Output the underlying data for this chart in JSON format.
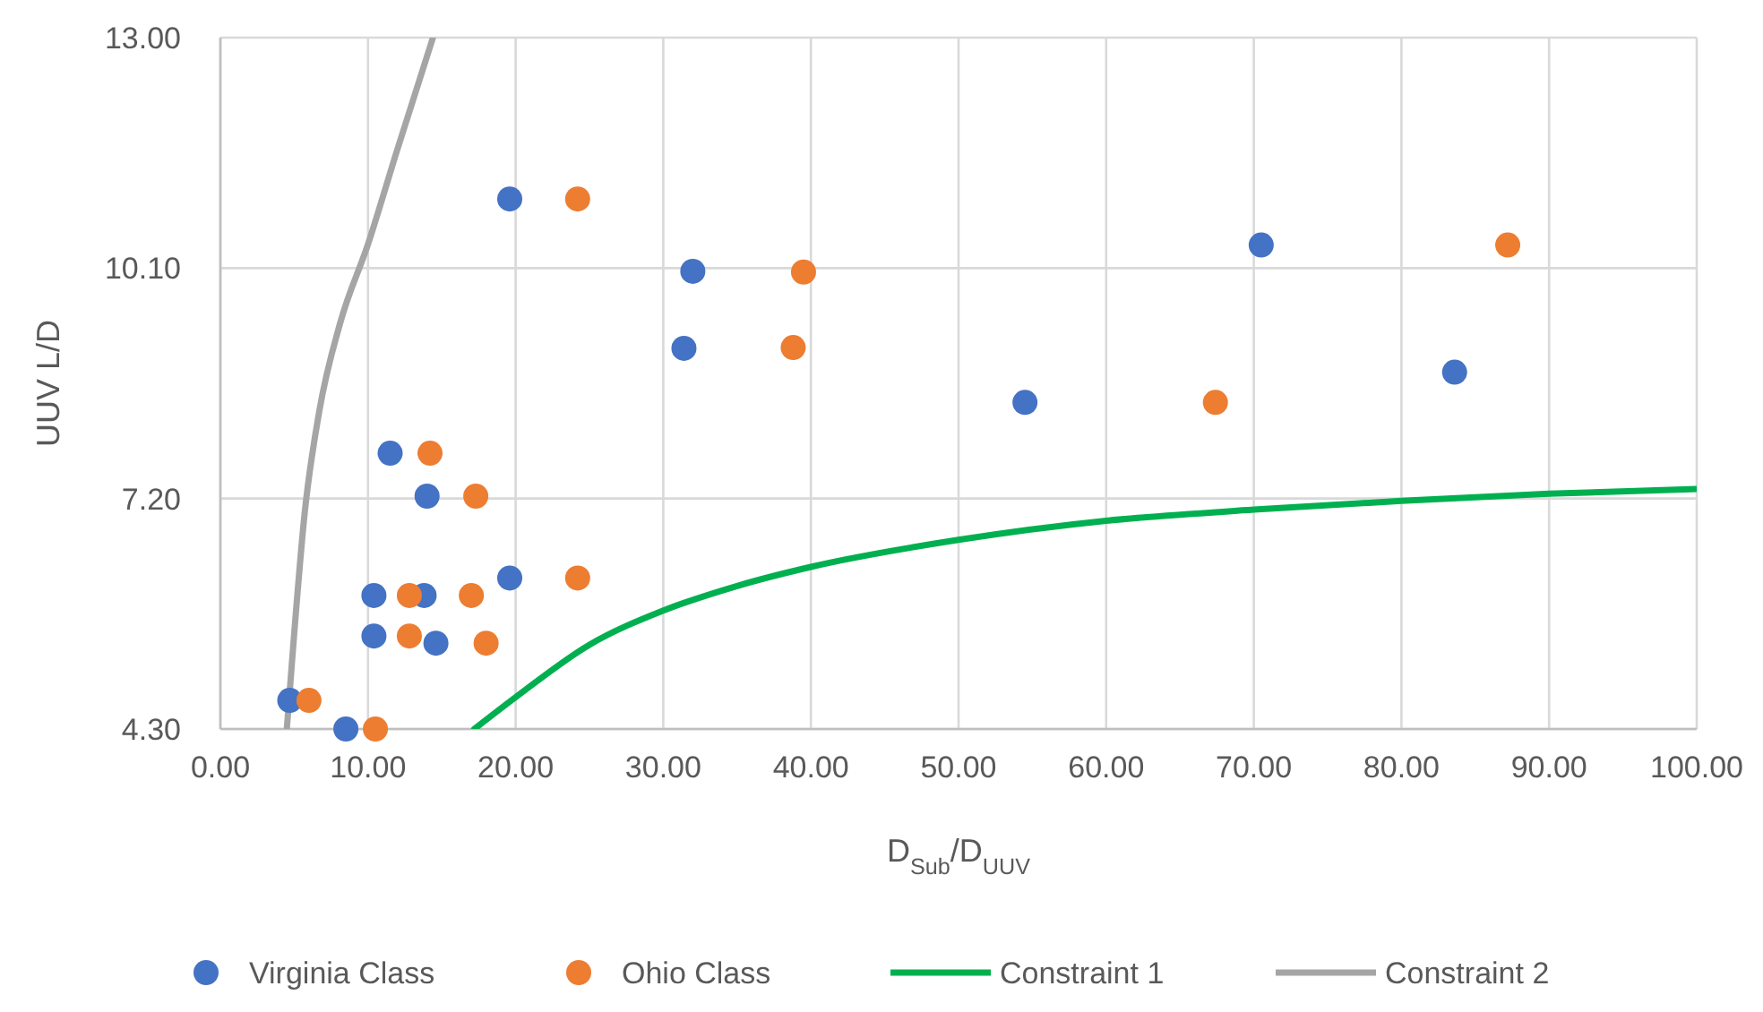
{
  "chart_data": {
    "type": "scatter",
    "xlabel": "D$_{Sub}$/D$_{UUV}$",
    "ylabel": "UUV L/D",
    "xlim": [
      0,
      100
    ],
    "xticks": [
      {
        "value": 0,
        "label": "0.00"
      },
      {
        "value": 10,
        "label": "10.00"
      },
      {
        "value": 20,
        "label": "20.00"
      },
      {
        "value": 30,
        "label": "30.00"
      },
      {
        "value": 40,
        "label": "40.00"
      },
      {
        "value": 50,
        "label": "50.00"
      },
      {
        "value": 60,
        "label": "60.00"
      },
      {
        "value": 70,
        "label": "70.00"
      },
      {
        "value": 80,
        "label": "80.00"
      },
      {
        "value": 90,
        "label": "90.00"
      },
      {
        "value": 100,
        "label": "100.00"
      }
    ],
    "ylim": [
      4.3,
      13
    ],
    "yticks": [
      {
        "value": 4.3,
        "label": "4.30"
      },
      {
        "value": 7.2,
        "label": "7.20"
      },
      {
        "value": 10.1,
        "label": "10.10"
      },
      {
        "value": 13,
        "label": "13.00"
      }
    ],
    "grid": true,
    "legend": "bottom",
    "series": [
      {
        "name": "Virginia Class",
        "marker": "circle",
        "color": "#4472c4",
        "x": [
          4.7,
          8.5,
          11.5,
          14.0,
          10.4,
          13.8,
          10.4,
          14.6,
          19.6,
          19.6,
          32.0,
          31.4,
          54.5,
          70.5,
          83.6
        ],
        "values": [
          4.66,
          4.3,
          7.77,
          7.23,
          5.98,
          5.98,
          5.47,
          5.38,
          10.97,
          6.2,
          10.06,
          9.09,
          8.41,
          10.39,
          8.79
        ]
      },
      {
        "name": "Ohio Class",
        "marker": "circle",
        "color": "#ed7d31",
        "x": [
          6.0,
          10.5,
          14.2,
          17.3,
          12.8,
          17.0,
          12.8,
          18.0,
          24.2,
          24.2,
          39.5,
          38.8,
          67.4,
          87.2
        ],
        "values": [
          4.66,
          4.3,
          7.77,
          7.23,
          5.98,
          5.98,
          5.47,
          5.38,
          10.97,
          6.2,
          10.05,
          9.1,
          8.41,
          10.39
        ]
      },
      {
        "name": "Constraint 1",
        "type": "line",
        "color": "#00b050",
        "x": [
          17.2,
          20,
          25,
          30,
          35,
          40,
          50,
          60,
          70,
          80,
          90,
          100
        ],
        "values": [
          4.3,
          4.7,
          5.36,
          5.79,
          6.1,
          6.34,
          6.68,
          6.92,
          7.06,
          7.17,
          7.26,
          7.32
        ]
      },
      {
        "name": "Constraint 2",
        "type": "line",
        "color": "#a5a5a5",
        "x": [
          4.5,
          5.0,
          5.7,
          6.7,
          8.1,
          10.0,
          12.0,
          14.4
        ],
        "values": [
          4.3,
          5.5,
          7.0,
          8.3,
          9.4,
          10.4,
          11.6,
          13
        ]
      }
    ]
  }
}
